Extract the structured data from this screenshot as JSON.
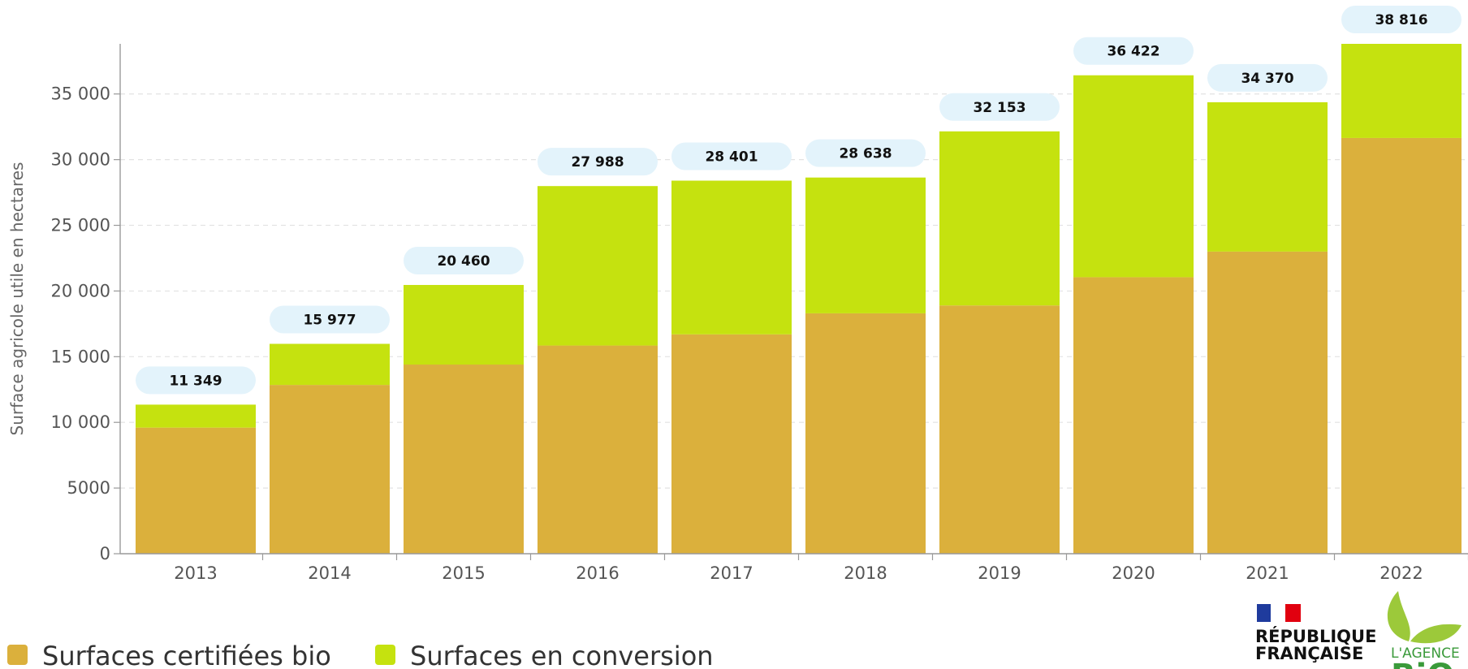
{
  "chart_data": {
    "type": "bar",
    "stacked": true,
    "categories": [
      "2013",
      "2014",
      "2015",
      "2016",
      "2017",
      "2018",
      "2019",
      "2020",
      "2021",
      "2022"
    ],
    "series": [
      {
        "name": "Surfaces certifiées bio",
        "color": "#dbb03c",
        "values": [
          9600,
          12850,
          14400,
          15850,
          16700,
          18300,
          18900,
          21050,
          23000,
          31650
        ]
      },
      {
        "name": "Surfaces en conversion",
        "color": "#c5e20f",
        "values": [
          1749,
          3127,
          6060,
          12138,
          11701,
          10338,
          13253,
          15372,
          11370,
          7166
        ]
      }
    ],
    "totals": [
      11349,
      15977,
      20460,
      27988,
      28401,
      28638,
      32153,
      36422,
      34370,
      38816
    ],
    "total_labels": [
      "11 349",
      "15 977",
      "20 460",
      "27 988",
      "28 401",
      "28 638",
      "32 153",
      "36 422",
      "34 370",
      "38 816"
    ],
    "ylabel": "Surface agricole utile en hectares",
    "ylim": [
      0,
      38816
    ],
    "yticks": [
      0,
      5000,
      10000,
      15000,
      20000,
      25000,
      30000,
      35000
    ],
    "ytick_labels": [
      "0",
      "5000",
      "10 000",
      "15 000",
      "20 000",
      "25 000",
      "30 000",
      "35 000"
    ],
    "grid": true,
    "legend_position": "bottom-left",
    "total_badge_color": "#e3f3fb"
  },
  "logos": {
    "republique_line1": "RÉPUBLIQUE",
    "republique_line2": "FRANÇAISE",
    "agence_line": "L'AGENCE",
    "agence_bio": "BiO"
  }
}
